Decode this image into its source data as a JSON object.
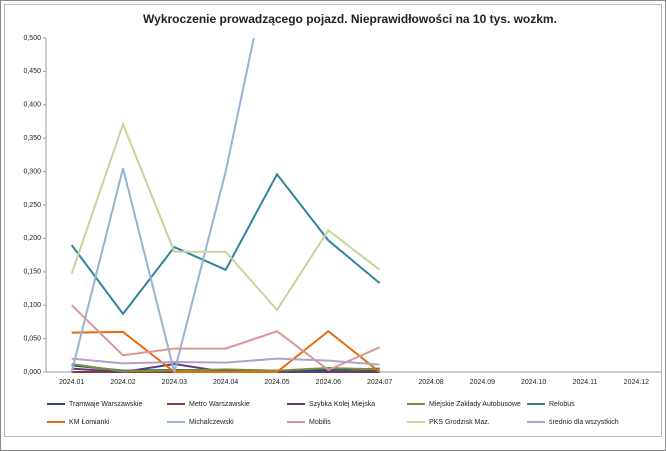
{
  "chart_data": {
    "type": "line",
    "title": "Wykroczenie prowadzącego pojazd. Nieprawidłowości na 10 tys. wozkm.",
    "categories": [
      "2024.01",
      "2024.02",
      "2024.03",
      "2024.04",
      "2024.05",
      "2024.06",
      "2024.07",
      "2024.08",
      "2024.09",
      "2024.10",
      "2024.11",
      "2024.12"
    ],
    "ylim": [
      0,
      0.5
    ],
    "yticks": [
      {
        "value": 0,
        "label": "0,000"
      },
      {
        "value": 0.05,
        "label": "0,050"
      },
      {
        "value": 0.1,
        "label": "0,100"
      },
      {
        "value": 0.15,
        "label": "0,150"
      },
      {
        "value": 0.2,
        "label": "0,200"
      },
      {
        "value": 0.25,
        "label": "0,250"
      },
      {
        "value": 0.3,
        "label": "0,300"
      },
      {
        "value": 0.35,
        "label": "0,350"
      },
      {
        "value": 0.4,
        "label": "0,400"
      },
      {
        "value": 0.45,
        "label": "0,450"
      },
      {
        "value": 0.5,
        "label": "0,500"
      }
    ],
    "grid": false,
    "legend": "bottom",
    "series": [
      {
        "name": "Tramwaje Warszawskie",
        "color": "#1f4e79",
        "values": [
          0.01,
          0.002,
          0.003,
          0.003,
          0.002,
          0.003,
          0.005,
          null,
          null,
          null,
          null,
          null
        ]
      },
      {
        "name": "Metro Warszawskie",
        "color": "#943634",
        "values": [
          0,
          0,
          0,
          0,
          0,
          0,
          0.002,
          null,
          null,
          null,
          null,
          null
        ]
      },
      {
        "name": "Szybka Kolej Miejska",
        "color": "#5f3c7e",
        "values": [
          0.005,
          0,
          0.012,
          0,
          0,
          0,
          0,
          null,
          null,
          null,
          null,
          null
        ]
      },
      {
        "name": "Miejskie Zakłady Autobusowe",
        "color": "#77933c",
        "values": [
          0.012,
          0.001,
          0.002,
          0.004,
          0.002,
          0.006,
          0.004,
          null,
          null,
          null,
          null,
          null
        ]
      },
      {
        "name": "Relobus",
        "color": "#31849b",
        "values": [
          0.19,
          0.087,
          0.187,
          0.153,
          0.296,
          0.197,
          0.133,
          null,
          null,
          null,
          null,
          null
        ]
      },
      {
        "name": "KM Łomianki",
        "color": "#e46c0a",
        "values": [
          0.059,
          0.06,
          0,
          0,
          0,
          0.061,
          0,
          null,
          null,
          null,
          null,
          null
        ]
      },
      {
        "name": "Michalczewski",
        "color": "#95b3d7",
        "values": [
          0,
          0.305,
          0,
          0.3,
          0.665,
          null,
          null,
          null,
          null,
          null,
          null,
          null
        ]
      },
      {
        "name": "Mobilis",
        "color": "#d99694",
        "values": [
          0.1,
          0.025,
          0.035,
          0.035,
          0.061,
          0.003,
          0.037,
          null,
          null,
          null,
          null,
          null
        ]
      },
      {
        "name": "PKS Grodzisk Maz.",
        "color": "#c3d69b",
        "values": [
          0.147,
          0.371,
          0.18,
          0.18,
          0.093,
          0.212,
          0.153,
          null,
          null,
          null,
          null,
          null
        ]
      },
      {
        "name": "średnio dla wszystkich",
        "color": "#b3a2c7",
        "values": [
          0.02,
          0.013,
          0.015,
          0.014,
          0.02,
          0.017,
          0.011,
          null,
          null,
          null,
          null,
          null
        ]
      }
    ]
  }
}
